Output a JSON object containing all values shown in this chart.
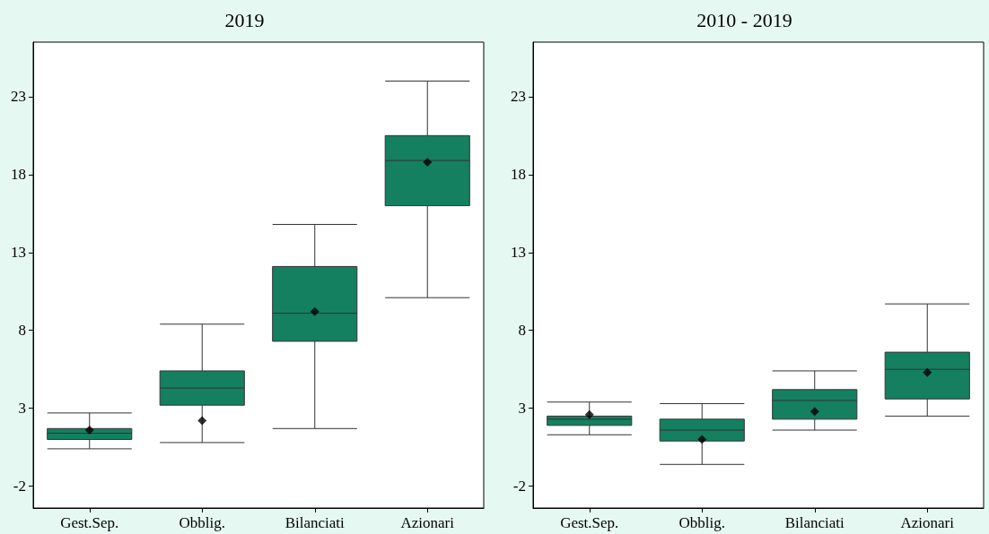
{
  "chart_data": [
    {
      "type": "box",
      "title": "2019",
      "categories": [
        "Gest.Sep.",
        "Obblig.",
        "Bilanciati",
        "Azionari"
      ],
      "ylim": [
        -3.4,
        26.5
      ],
      "yticks": [
        -2,
        3,
        8,
        13,
        18,
        23
      ],
      "marker": "diamond",
      "series": [
        {
          "color": "#14805f",
          "boxes": [
            {
              "low": 0.4,
              "q1": 1.0,
              "median": 1.4,
              "q3": 1.7,
              "high": 2.7,
              "mean": 1.6
            },
            {
              "low": 0.8,
              "q1": 3.2,
              "median": 4.3,
              "q3": 5.4,
              "high": 8.4,
              "mean": 2.2
            },
            {
              "low": 1.7,
              "q1": 7.3,
              "median": 9.1,
              "q3": 12.1,
              "high": 14.8,
              "mean": 9.2
            },
            {
              "low": 10.1,
              "q1": 16.0,
              "median": 18.9,
              "q3": 20.5,
              "high": 24.0,
              "mean": 18.8
            }
          ]
        }
      ]
    },
    {
      "type": "box",
      "title": "2010 - 2019",
      "categories": [
        "Gest.Sep.",
        "Obblig.",
        "Bilanciati",
        "Azionari"
      ],
      "ylim": [
        -3.4,
        26.5
      ],
      "yticks": [
        -2,
        3,
        8,
        13,
        18,
        23
      ],
      "marker": "diamond",
      "series": [
        {
          "color": "#14805f",
          "boxes": [
            {
              "low": 1.3,
              "q1": 1.9,
              "median": 2.3,
              "q3": 2.5,
              "high": 3.4,
              "mean": 2.6
            },
            {
              "low": -0.6,
              "q1": 0.9,
              "median": 1.6,
              "q3": 2.3,
              "high": 3.3,
              "mean": 1.0
            },
            {
              "low": 1.6,
              "q1": 2.3,
              "median": 3.5,
              "q3": 4.2,
              "high": 5.4,
              "mean": 2.8
            },
            {
              "low": 2.5,
              "q1": 3.6,
              "median": 5.5,
              "q3": 6.6,
              "high": 9.7,
              "mean": 5.3
            }
          ]
        }
      ]
    }
  ]
}
